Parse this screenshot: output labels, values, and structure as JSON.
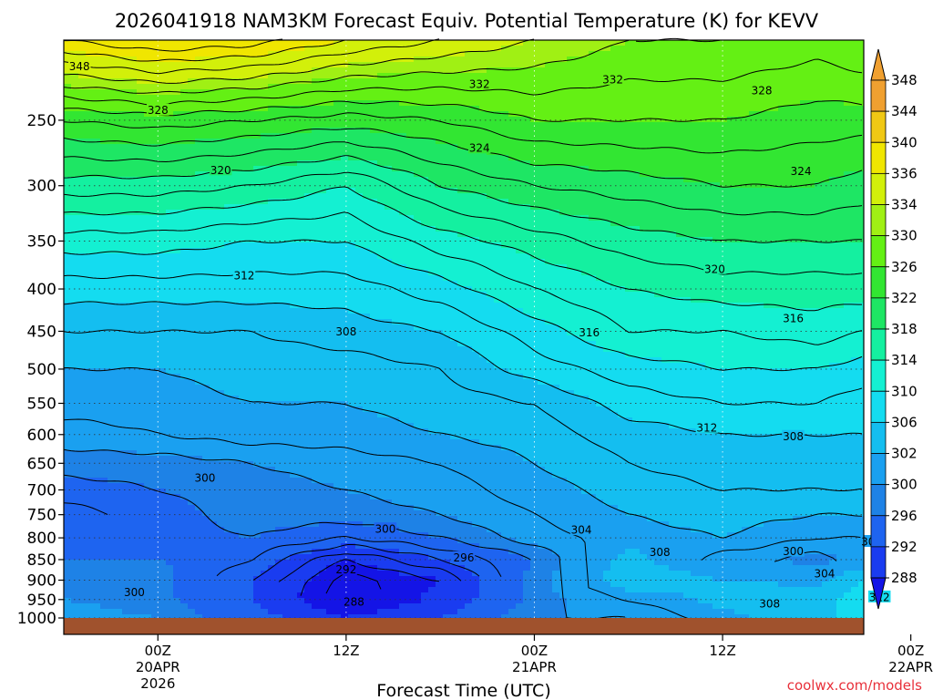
{
  "chart_data": {
    "type": "heatmap",
    "title": "2026041918 NAM3KM Forecast Equiv. Potential Temperature (K) for KEVV",
    "xlabel": "Forecast Time (UTC)",
    "ylabel": "",
    "y_axis": {
      "unit": "hPa",
      "ticks": [
        250,
        300,
        350,
        400,
        450,
        500,
        550,
        600,
        650,
        700,
        750,
        800,
        850,
        900,
        950,
        1000
      ],
      "range": [
        1000,
        200
      ],
      "scale": "log-pressure"
    },
    "x_axis": {
      "range_hours": [
        -6,
        45
      ],
      "ticks": [
        {
          "hour": 0,
          "label": "00Z",
          "sub1": "20APR",
          "sub2": "2026"
        },
        {
          "hour": 12,
          "label": "12Z",
          "sub1": "",
          "sub2": ""
        },
        {
          "hour": 24,
          "label": "00Z",
          "sub1": "21APR",
          "sub2": ""
        },
        {
          "hour": 36,
          "label": "12Z",
          "sub1": "",
          "sub2": ""
        },
        {
          "hour": 48,
          "label": "00Z",
          "sub1": "22APR",
          "sub2": ""
        }
      ]
    },
    "colorbar": {
      "levels": [
        288,
        292,
        296,
        300,
        302,
        306,
        310,
        314,
        318,
        322,
        326,
        330,
        334,
        336,
        340,
        344,
        348
      ],
      "colors": [
        "#1414e6",
        "#1a3cf0",
        "#1e64f0",
        "#1e82e6",
        "#1aa0f0",
        "#14bef0",
        "#14dcf0",
        "#14f0d2",
        "#14f0a0",
        "#1ee664",
        "#32e632",
        "#64f014",
        "#a0f014",
        "#d2f00a",
        "#f0e600",
        "#f0c814",
        "#f0a030"
      ]
    },
    "profile_levels_hpa": [
      200,
      250,
      300,
      350,
      400,
      450,
      500,
      550,
      600,
      650,
      700,
      750,
      800,
      850,
      900,
      950,
      1000
    ],
    "profiles": [
      {
        "hour": -6,
        "theta_e": [
          342,
          328,
          321,
          315,
          311,
          308,
          306,
          305,
          303,
          301,
          299,
          297,
          298,
          300,
          302,
          302,
          303
        ]
      },
      {
        "hour": 0,
        "theta_e": [
          344,
          329,
          321,
          315,
          311,
          308,
          306,
          305,
          304,
          301,
          300,
          299,
          299,
          300,
          301,
          301,
          302
        ]
      },
      {
        "hour": 6,
        "theta_e": [
          343,
          328,
          320,
          314,
          311,
          308,
          307,
          306,
          305,
          302,
          301,
          301,
          300,
          298,
          296,
          296,
          298
        ]
      },
      {
        "hour": 12,
        "theta_e": [
          340,
          327,
          318,
          314,
          311,
          309,
          307,
          306,
          305,
          303,
          302,
          301,
          298,
          292,
          289,
          288,
          292
        ]
      },
      {
        "hour": 18,
        "theta_e": [
          338,
          328,
          322,
          317,
          313,
          310,
          308,
          307,
          306,
          304,
          303,
          302,
          300,
          296,
          292,
          293,
          296
        ]
      },
      {
        "hour": 24,
        "theta_e": [
          336,
          330,
          324,
          319,
          316,
          313,
          311,
          308,
          307,
          306,
          305,
          304,
          303,
          300,
          301,
          301,
          302
        ]
      },
      {
        "hour": 30,
        "theta_e": [
          334,
          330,
          325,
          321,
          318,
          316,
          313,
          311,
          309,
          308,
          307,
          306,
          305,
          307,
          308,
          304,
          302
        ]
      },
      {
        "hour": 36,
        "theta_e": [
          334,
          330,
          326,
          322,
          319,
          316,
          314,
          312,
          310,
          309,
          308,
          307,
          306,
          303,
          306,
          307,
          305
        ]
      },
      {
        "hour": 42,
        "theta_e": [
          333,
          329,
          326,
          322,
          319,
          317,
          314,
          312,
          310,
          309,
          308,
          306,
          304,
          301,
          305,
          309,
          308
        ]
      },
      {
        "hour": 45,
        "theta_e": [
          334,
          329,
          325,
          322,
          319,
          316,
          313,
          311,
          310,
          309,
          308,
          306,
          304,
          303,
          310,
          312,
          312
        ]
      }
    ],
    "contour_labels": [
      {
        "hour": -5.0,
        "p": 215,
        "value": "348"
      },
      {
        "hour": 29,
        "p": 223,
        "value": "332"
      },
      {
        "hour": 20.5,
        "p": 226,
        "value": "332"
      },
      {
        "hour": 38.5,
        "p": 230,
        "value": "328"
      },
      {
        "hour": 0.0,
        "p": 243,
        "value": "328"
      },
      {
        "hour": 20.5,
        "p": 270,
        "value": "324"
      },
      {
        "hour": 41.0,
        "p": 288,
        "value": "324"
      },
      {
        "hour": 4.0,
        "p": 287,
        "value": "320"
      },
      {
        "hour": 35.5,
        "p": 378,
        "value": "320"
      },
      {
        "hour": 5.5,
        "p": 385,
        "value": "312"
      },
      {
        "hour": 40.5,
        "p": 434,
        "value": "316"
      },
      {
        "hour": 27.5,
        "p": 451,
        "value": "316"
      },
      {
        "hour": 12.0,
        "p": 450,
        "value": "308"
      },
      {
        "hour": 35.0,
        "p": 588,
        "value": "312"
      },
      {
        "hour": 40.5,
        "p": 603,
        "value": "308"
      },
      {
        "hour": 3.0,
        "p": 676,
        "value": "300"
      },
      {
        "hour": 14.5,
        "p": 780,
        "value": "300"
      },
      {
        "hour": 27.0,
        "p": 782,
        "value": "304"
      },
      {
        "hour": 19.5,
        "p": 845,
        "value": "296"
      },
      {
        "hour": 32.0,
        "p": 832,
        "value": "308"
      },
      {
        "hour": 12.0,
        "p": 873,
        "value": "292"
      },
      {
        "hour": 40.5,
        "p": 830,
        "value": "300"
      },
      {
        "hour": 45.5,
        "p": 808,
        "value": "304"
      },
      {
        "hour": 42.5,
        "p": 883,
        "value": "304"
      },
      {
        "hour": 46.0,
        "p": 943,
        "value": "312"
      },
      {
        "hour": 12.5,
        "p": 955,
        "value": "288"
      },
      {
        "hour": -1.5,
        "p": 930,
        "value": "300"
      },
      {
        "hour": 39.0,
        "p": 960,
        "value": "308"
      }
    ]
  },
  "footer": {
    "credit": "coolwx.com/models"
  }
}
